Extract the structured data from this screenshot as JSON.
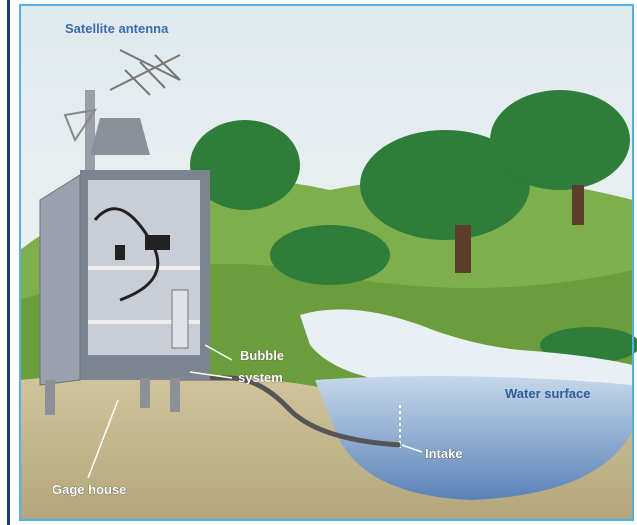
{
  "labels": {
    "satellite_antenna": "Satellite antenna",
    "bubble_system": [
      "Bubble",
      "system"
    ],
    "water_surface": "Water surface",
    "intake": "Intake",
    "gage_house": "Gage house"
  }
}
